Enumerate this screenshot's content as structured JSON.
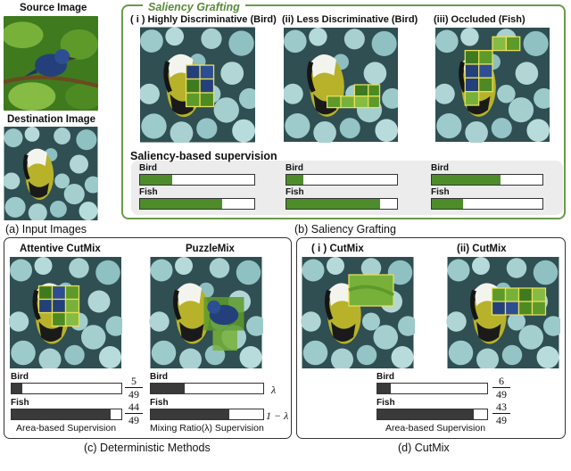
{
  "input": {
    "source_label": "Source Image",
    "destination_label": "Destination Image",
    "caption": "(a) Input Images"
  },
  "saliency": {
    "title": "Saliency Grafting",
    "cases": [
      {
        "label": "( i ) Highly Discriminative (Bird)"
      },
      {
        "label": "(ii) Less Discriminative (Bird)"
      },
      {
        "label": "(iii) Occluded (Fish)"
      }
    ],
    "supervision_title": "Saliency-based supervision",
    "bars": [
      {
        "bird_label": "Bird",
        "bird": 0.28,
        "fish_label": "Fish",
        "fish": 0.72
      },
      {
        "bird_label": "Bird",
        "bird": 0.15,
        "fish_label": "Fish",
        "fish": 0.85
      },
      {
        "bird_label": "Bird",
        "bird": 0.62,
        "fish_label": "Fish",
        "fish": 0.28
      }
    ],
    "caption": "(b) Saliency Grafting"
  },
  "deterministic": {
    "methods": [
      {
        "label": "Attentive CutMix",
        "bird_label": "Bird",
        "bird": 0.1,
        "fish_label": "Fish",
        "fish": 0.9,
        "bird_num": "5",
        "bird_den": "49",
        "fish_num": "44",
        "fish_den": "49",
        "footer": "Area-based Supervision"
      },
      {
        "label": "PuzzleMix",
        "bird_label": "Bird",
        "bird": 0.3,
        "fish_label": "Fish",
        "fish": 0.7,
        "bird_math": "λ",
        "fish_math": "1 − λ",
        "footer": "Mixing Ratio(λ) Supervision"
      }
    ],
    "caption": "(c) Deterministic Methods"
  },
  "cutmix": {
    "cases": [
      {
        "label": "( i ) CutMix"
      },
      {
        "label": "(ii) CutMix"
      }
    ],
    "bird_label": "Bird",
    "bird": 0.12,
    "bird_num": "6",
    "bird_den": "49",
    "fish_label": "Fish",
    "fish": 0.88,
    "fish_num": "43",
    "fish_den": "49",
    "footer": "Area-based Supervision",
    "caption": "(d)  CutMix"
  },
  "colors": {
    "green_fill": "#4e8c2b",
    "dark_fill": "#3a3a3a",
    "panel_green": "#6a9a47",
    "grid_yellow": "#e8e05a"
  }
}
